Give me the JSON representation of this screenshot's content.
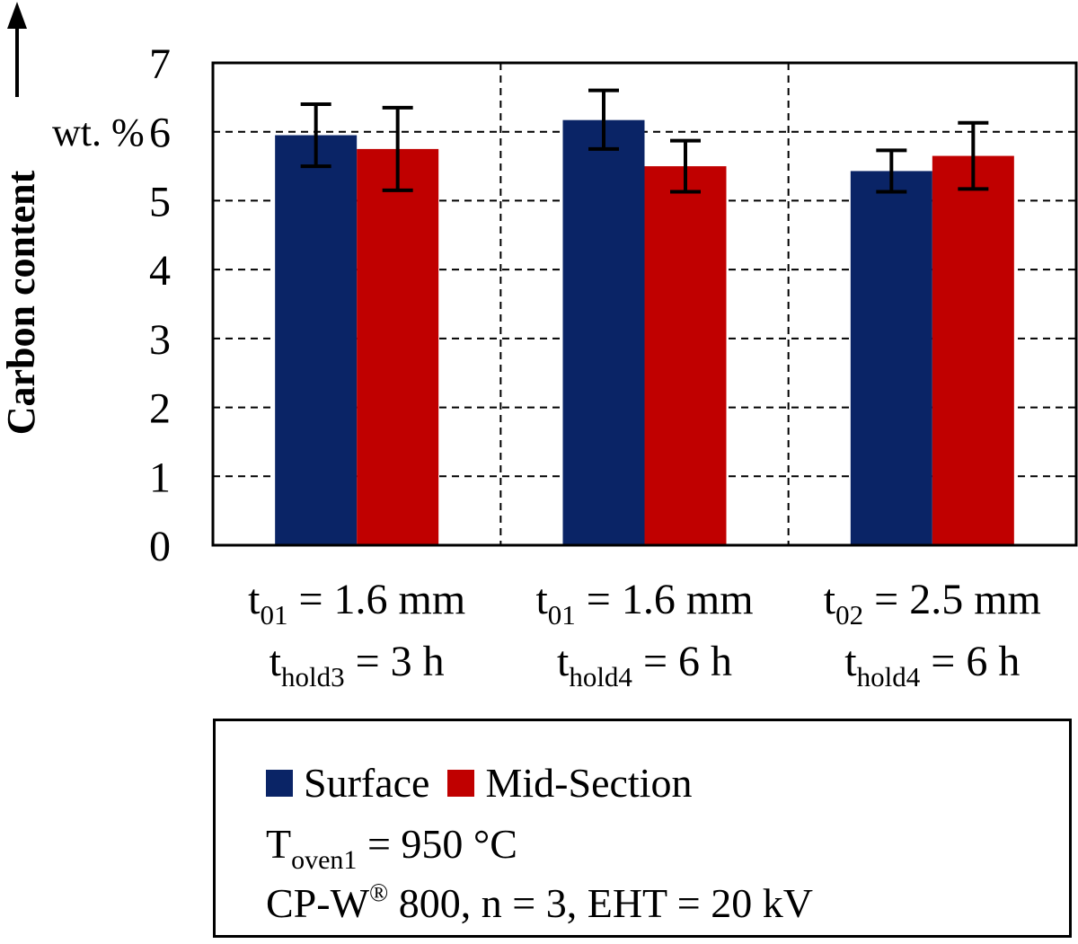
{
  "chart_data": {
    "type": "bar",
    "ylabel": "Carbon content",
    "yunit": "wt. %",
    "ylim": [
      0,
      7
    ],
    "yticks": [
      0,
      1,
      2,
      3,
      4,
      5,
      6,
      7
    ],
    "grid": true,
    "categories": [
      {
        "line1": {
          "base": "t",
          "sub": "01",
          "rest": " = 1.6 mm"
        },
        "line2": {
          "base": "t",
          "sub": "hold3",
          "rest": " = 3 h"
        }
      },
      {
        "line1": {
          "base": "t",
          "sub": "01",
          "rest": " = 1.6 mm"
        },
        "line2": {
          "base": "t",
          "sub": "hold4",
          "rest": " = 6 h"
        }
      },
      {
        "line1": {
          "base": "t",
          "sub": "02",
          "rest": " = 2.5 mm"
        },
        "line2": {
          "base": "t",
          "sub": "hold4",
          "rest": " = 6 h"
        }
      }
    ],
    "series": [
      {
        "name": "Surface",
        "color": "#0a2466",
        "values": [
          5.95,
          6.17,
          5.43
        ],
        "err_low": [
          5.5,
          5.75,
          5.13
        ],
        "err_high": [
          6.4,
          6.6,
          5.73
        ]
      },
      {
        "name": "Mid-Section",
        "color": "#c00000",
        "values": [
          5.75,
          5.5,
          5.65
        ],
        "err_low": [
          5.15,
          5.13,
          5.17
        ],
        "err_high": [
          6.35,
          5.87,
          6.13
        ]
      }
    ]
  },
  "legend": {
    "surface": "Surface",
    "midsection": "Mid-Section",
    "oven": {
      "base": "T",
      "sub": "oven1",
      "rest": " = 950 °C"
    },
    "conditions": {
      "prefix": "CP-W",
      "sup": "®",
      "rest": " 800, n = 3, EHT = 20 kV"
    }
  }
}
